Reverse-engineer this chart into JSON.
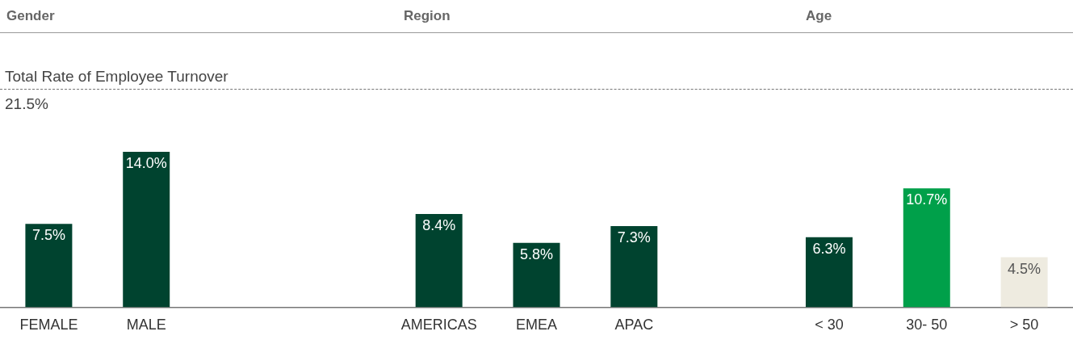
{
  "chart_data": {
    "type": "bar",
    "categories": [
      "FEMALE",
      "MALE",
      null,
      null,
      "AMERICAS",
      "EMEA",
      "APAC",
      null,
      "< 30",
      "30- 50",
      "> 50"
    ],
    "values": [
      7.5,
      14.0,
      null,
      null,
      8.4,
      5.8,
      7.3,
      null,
      6.3,
      10.7,
      4.5
    ],
    "value_labels": [
      "7.5%",
      "14.0%",
      null,
      null,
      "8.4%",
      "5.8%",
      "7.3%",
      null,
      "6.3%",
      "10.7%",
      "4.5%"
    ],
    "colors": [
      "#00432f",
      "#00432f",
      "#00432f",
      "#00432f",
      "#00432f",
      "#00432f",
      "#00432f",
      "#00432f",
      "#00432f",
      "#00a04a",
      "#eeebe0"
    ],
    "tick_labels": "x",
    "grid": false,
    "legend": false,
    "annotations": [
      "Gender",
      "Region",
      "Age",
      "Total Rate of Employee Turnover",
      "21.5%"
    ]
  }
}
